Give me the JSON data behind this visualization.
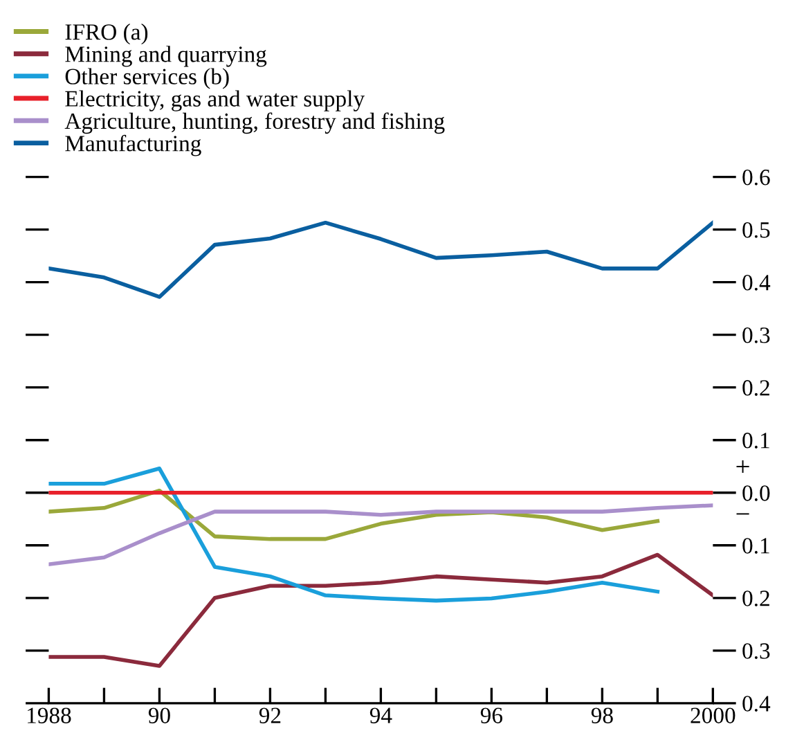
{
  "chart_data": {
    "type": "line",
    "x": [
      1988,
      1989,
      1990,
      1991,
      1992,
      1993,
      1994,
      1995,
      1996,
      1997,
      1998,
      1999,
      2000
    ],
    "series": [
      {
        "name": "IFRO (a)",
        "color": "#9aa83a",
        "values": [
          -0.036,
          -0.029,
          0.004,
          -0.083,
          -0.088,
          -0.088,
          -0.059,
          -0.042,
          -0.037,
          -0.047,
          -0.071,
          -0.054,
          null
        ]
      },
      {
        "name": "Mining and quarrying",
        "color": "#8b2a3c",
        "values": [
          -0.312,
          -0.312,
          -0.329,
          -0.2,
          -0.177,
          -0.177,
          -0.171,
          -0.159,
          -0.165,
          -0.171,
          -0.159,
          -0.118,
          -0.195
        ]
      },
      {
        "name": "Other services (b)",
        "color": "#1a9fdb",
        "values": [
          0.017,
          0.017,
          0.046,
          -0.141,
          -0.159,
          -0.195,
          -0.201,
          -0.205,
          -0.201,
          -0.188,
          -0.171,
          -0.188,
          null
        ]
      },
      {
        "name": "Electricity, gas and water supply",
        "color": "#e8202a",
        "values": [
          0,
          0,
          0,
          0,
          0,
          0,
          0,
          0,
          0,
          0,
          0,
          0,
          0
        ]
      },
      {
        "name": "Agriculture, hunting, forestry and fishing",
        "color": "#a98fcb",
        "values": [
          -0.136,
          -0.123,
          -0.077,
          -0.036,
          -0.036,
          -0.036,
          -0.042,
          -0.036,
          -0.036,
          -0.036,
          -0.036,
          -0.029,
          -0.024
        ]
      },
      {
        "name": "Manufacturing",
        "color": "#0a5fa0",
        "values": [
          0.426,
          0.409,
          0.372,
          0.471,
          0.483,
          0.513,
          0.482,
          0.446,
          0.451,
          0.458,
          0.426,
          0.426,
          0.513
        ]
      }
    ],
    "xlim": [
      1988,
      2000
    ],
    "xticks": [
      1988,
      {
        "value": 1989,
        "label": null
      },
      {
        "value": 1990,
        "label": "90"
      },
      {
        "value": 1991,
        "label": null
      },
      {
        "value": 1992,
        "label": "92"
      },
      {
        "value": 1993,
        "label": null
      },
      {
        "value": 1994,
        "label": "94"
      },
      {
        "value": 1995,
        "label": null
      },
      {
        "value": 1996,
        "label": "96"
      },
      {
        "value": 1997,
        "label": null
      },
      {
        "value": 1998,
        "label": "98"
      },
      {
        "value": 1999,
        "label": null
      },
      2000
    ],
    "ylim": [
      -0.4,
      0.6
    ],
    "yticks": [
      {
        "value": -0.4,
        "label": "0.4"
      },
      {
        "value": -0.3,
        "label": "0.3"
      },
      {
        "value": -0.2,
        "label": "0.2"
      },
      {
        "value": -0.1,
        "label": "0.1"
      },
      {
        "value": 0,
        "label": "0.0"
      },
      0.1,
      0.2,
      0.3,
      0.4,
      0.5,
      0.6
    ],
    "annotations": [
      "+",
      "−"
    ],
    "legend": "top left",
    "grid": false,
    "marker": "none",
    "line_style": "solid"
  }
}
